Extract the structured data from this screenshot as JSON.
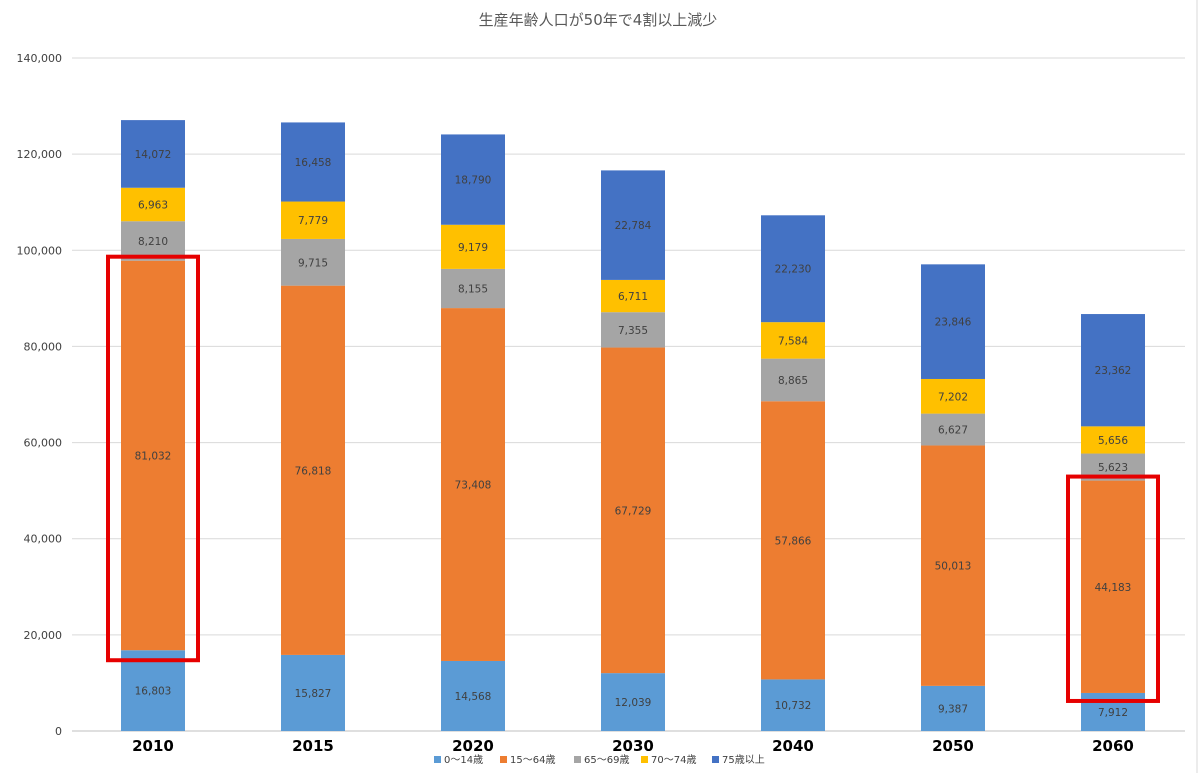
{
  "chart_data": {
    "type": "bar",
    "stacked": true,
    "title": "生産年齢人口が50年で4割以上減少",
    "categories": [
      "2010",
      "2015",
      "2020",
      "2030",
      "2040",
      "2050",
      "2060"
    ],
    "ylim": [
      0,
      140000
    ],
    "yticks": [
      0,
      20000,
      40000,
      60000,
      80000,
      100000,
      120000,
      140000
    ],
    "ytick_labels": [
      "0",
      "20,000",
      "40,000",
      "60,000",
      "80,000",
      "100,000",
      "120,000",
      "140,000"
    ],
    "grid": true,
    "legend_position": "bottom",
    "series": [
      {
        "name": "0～14歳",
        "color": "#5b9bd5",
        "values": [
          16803,
          15827,
          14568,
          12039,
          10732,
          9387,
          7912
        ],
        "labels": [
          "16,803",
          "15,827",
          "14,568",
          "12,039",
          "10,732",
          "9,387",
          "7,912"
        ]
      },
      {
        "name": "15～64歳",
        "color": "#ed7d31",
        "values": [
          81032,
          76818,
          73408,
          67729,
          57866,
          50013,
          44183
        ],
        "labels": [
          "81,032",
          "76,818",
          "73,408",
          "67,729",
          "57,866",
          "50,013",
          "44,183"
        ]
      },
      {
        "name": "65～69歳",
        "color": "#a5a5a5",
        "values": [
          8210,
          9715,
          8155,
          7355,
          8865,
          6627,
          5623
        ],
        "labels": [
          "8,210",
          "9,715",
          "8,155",
          "7,355",
          "8,865",
          "6,627",
          "5,623"
        ]
      },
      {
        "name": "70～74歳",
        "color": "#ffc000",
        "values": [
          6963,
          7779,
          9179,
          6711,
          7584,
          7202,
          5656
        ],
        "labels": [
          "6,963",
          "7,779",
          "9,179",
          "6,711",
          "7,584",
          "7,202",
          "5,656"
        ]
      },
      {
        "name": "75歳以上",
        "color": "#4472c4",
        "values": [
          14072,
          16458,
          18790,
          22784,
          22230,
          23846,
          23362
        ],
        "labels": [
          "14,072",
          "16,458",
          "18,790",
          "22,784",
          "22,230",
          "23,846",
          "23,362"
        ]
      }
    ],
    "highlights": [
      {
        "category": "2010",
        "series": "15～64歳",
        "color": "#e60000"
      },
      {
        "category": "2060",
        "series": "15～64歳",
        "color": "#e60000"
      }
    ]
  }
}
